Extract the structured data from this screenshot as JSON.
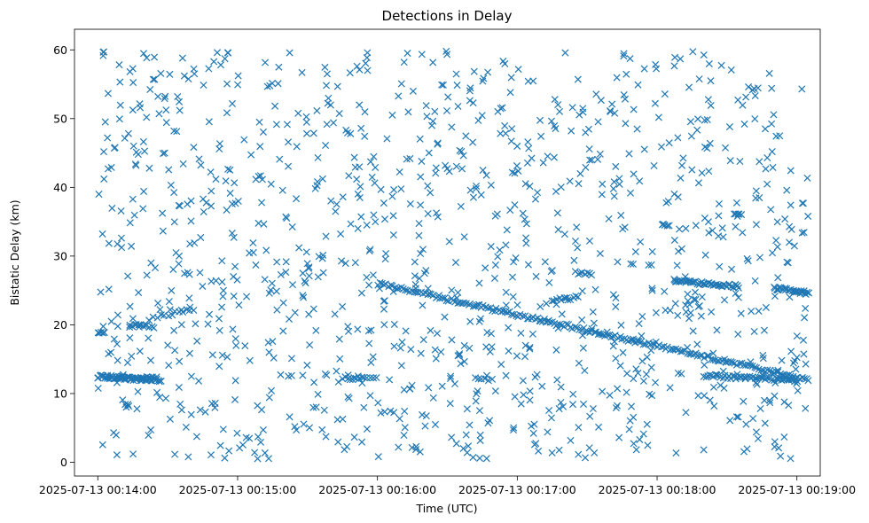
{
  "chart_data": {
    "type": "scatter",
    "title": "Detections in Delay",
    "xlabel": "Time (UTC)",
    "ylabel": "Bistatic Delay (km)",
    "marker": "x",
    "marker_color": "#1f77b4",
    "grid": false,
    "xlim": [
      "2025-07-13 00:13:50",
      "2025-07-13 00:19:10"
    ],
    "ylim": [
      -2,
      63
    ],
    "x_ticks": [
      "2025-07-13 00:14:00",
      "2025-07-13 00:15:00",
      "2025-07-13 00:16:00",
      "2025-07-13 00:17:00",
      "2025-07-13 00:18:00",
      "2025-07-13 00:19:00"
    ],
    "y_ticks": [
      0,
      10,
      20,
      30,
      40,
      50,
      60
    ],
    "tracks": [
      {
        "start": "2025-07-13 00:14:00",
        "end": "2025-07-13 00:14:27",
        "delay_start": 12.5,
        "delay_end": 11.9,
        "points": 55
      },
      {
        "start": "2025-07-13 00:16:00",
        "end": "2025-07-13 00:19:05",
        "delay_start": 26.0,
        "delay_end": 12.0,
        "points": 200
      },
      {
        "start": "2025-07-13 00:18:07",
        "end": "2025-07-13 00:18:35",
        "delay_start": 26.4,
        "delay_end": 25.6,
        "points": 45
      },
      {
        "start": "2025-07-13 00:18:20",
        "end": "2025-07-13 00:19:00",
        "delay_start": 12.6,
        "delay_end": 11.9,
        "points": 50
      },
      {
        "start": "2025-07-13 00:18:50",
        "end": "2025-07-13 00:19:00",
        "delay_start": 25.3,
        "delay_end": 24.9,
        "points": 20
      },
      {
        "start": "2025-07-13 00:19:00",
        "end": "2025-07-13 00:19:05",
        "delay_start": 24.8,
        "delay_end": 24.6,
        "points": 10
      },
      {
        "start": "2025-07-13 00:14:00",
        "end": "2025-07-13 00:14:03",
        "delay_start": 18.8,
        "delay_end": 18.9,
        "points": 5
      },
      {
        "start": "2025-07-13 00:14:03",
        "end": "2025-07-13 00:14:25",
        "delay_start": 12.4,
        "delay_end": 12.2,
        "points": 18
      },
      {
        "start": "2025-07-13 00:14:14",
        "end": "2025-07-13 00:14:24",
        "delay_start": 20.0,
        "delay_end": 19.7,
        "points": 12
      },
      {
        "start": "2025-07-13 00:14:24",
        "end": "2025-07-13 00:14:41",
        "delay_start": 21.0,
        "delay_end": 22.3,
        "points": 12
      },
      {
        "start": "2025-07-13 00:15:45",
        "end": "2025-07-13 00:15:58",
        "delay_start": 12.2,
        "delay_end": 12.2,
        "points": 12
      },
      {
        "start": "2025-07-13 00:16:42",
        "end": "2025-07-13 00:16:49",
        "delay_start": 12.1,
        "delay_end": 12.0,
        "points": 6
      },
      {
        "start": "2025-07-13 00:17:15",
        "end": "2025-07-13 00:17:26",
        "delay_start": 23.5,
        "delay_end": 24.0,
        "points": 12
      },
      {
        "start": "2025-07-13 00:17:25",
        "end": "2025-07-13 00:17:32",
        "delay_start": 27.6,
        "delay_end": 27.4,
        "points": 8
      },
      {
        "start": "2025-07-13 00:18:02",
        "end": "2025-07-13 00:18:05",
        "delay_start": 34.7,
        "delay_end": 34.6,
        "points": 5
      },
      {
        "start": "2025-07-13 00:18:33",
        "end": "2025-07-13 00:18:36",
        "delay_start": 36.1,
        "delay_end": 35.9,
        "points": 5
      }
    ],
    "clutter": {
      "description_points": 1150,
      "time_range": [
        "2025-07-13 00:14:00",
        "2025-07-13 00:19:05"
      ],
      "delay_range": [
        0.5,
        59.8
      ],
      "distribution": "uniform",
      "seed": 7
    }
  }
}
